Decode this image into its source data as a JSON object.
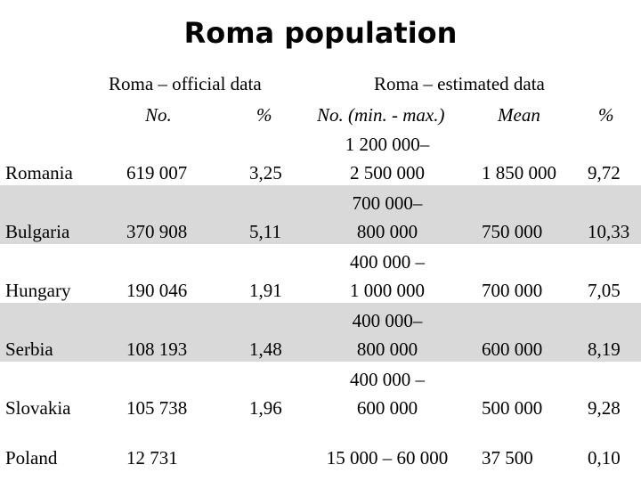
{
  "title": "Roma population",
  "headers": {
    "official_group": "Roma – official data",
    "estimated_group": "Roma – estimated data",
    "col_no": "No.",
    "col_pct": "%",
    "col_range": "No. (min. - max.)",
    "col_mean": "Mean",
    "col_pct2": "%"
  },
  "rows": [
    {
      "country": "Romania",
      "official_no": "619 007",
      "official_pct": "3,25",
      "range_line1": "1 200 000–",
      "range_line2": "2 500 000",
      "mean": "1 850 000",
      "est_pct": "9,72",
      "shaded": false
    },
    {
      "country": "Bulgaria",
      "official_no": "370 908",
      "official_pct": "5,11",
      "range_line1": "700 000–",
      "range_line2": "800 000",
      "mean": "750 000",
      "est_pct": "10,33",
      "shaded": true
    },
    {
      "country": "Hungary",
      "official_no": "190 046",
      "official_pct": "1,91",
      "range_line1": "400 000 –",
      "range_line2": "1 000 000",
      "mean": "700 000",
      "est_pct": "7,05",
      "shaded": false
    },
    {
      "country": "Serbia",
      "official_no": "108 193",
      "official_pct": "1,48",
      "range_line1": "400 000–",
      "range_line2": "800 000",
      "mean": "600 000",
      "est_pct": "8,19",
      "shaded": true
    },
    {
      "country": "Slovakia",
      "official_no": "105 738",
      "official_pct": "1,96",
      "range_line1": "400 000 –",
      "range_line2": "600 000",
      "mean": "500 000",
      "est_pct": "9,28",
      "shaded": false
    },
    {
      "country": "Poland",
      "official_no": "12 731",
      "official_pct": "",
      "range_line1": "15 000 – 60 000",
      "range_line2": "",
      "mean": "37 500",
      "est_pct": "0,10",
      "shaded": false
    }
  ]
}
